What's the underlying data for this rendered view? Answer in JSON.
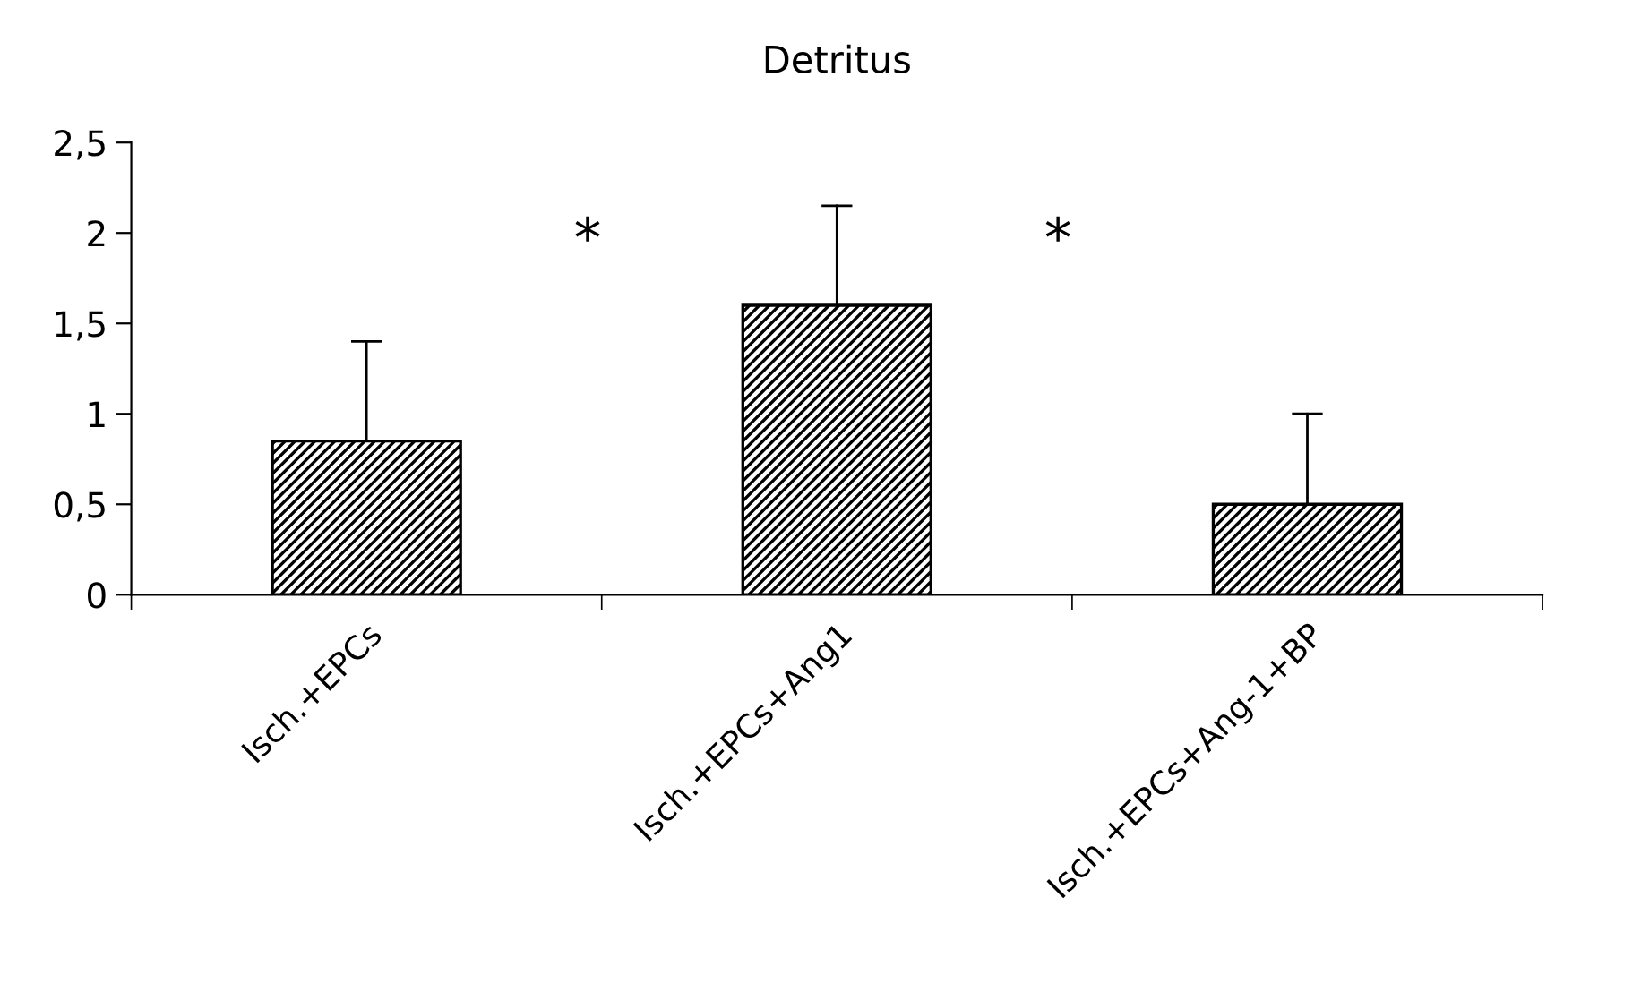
{
  "chart_data": {
    "type": "bar",
    "title": "Detritus",
    "categories": [
      "Isch.+EPCs",
      "Isch.+EPCs+Ang1",
      "Isch.+EPCs+Ang-1+BP"
    ],
    "values": [
      0.85,
      1.6,
      0.5
    ],
    "errors": [
      [
        0.85,
        1.4
      ],
      [
        1.6,
        2.15
      ],
      [
        0.5,
        1.0
      ]
    ],
    "color": "#000000",
    "ylim": [
      0,
      2.5
    ],
    "yticks": [
      0,
      {
        "value": 0.5,
        "label": "0,5"
      },
      1,
      {
        "value": 1.5,
        "label": "1,5"
      },
      2,
      {
        "value": 2.5,
        "label": "2,5"
      }
    ],
    "annotations": [
      "*",
      "*"
    ],
    "grid": false,
    "legend": false
  }
}
